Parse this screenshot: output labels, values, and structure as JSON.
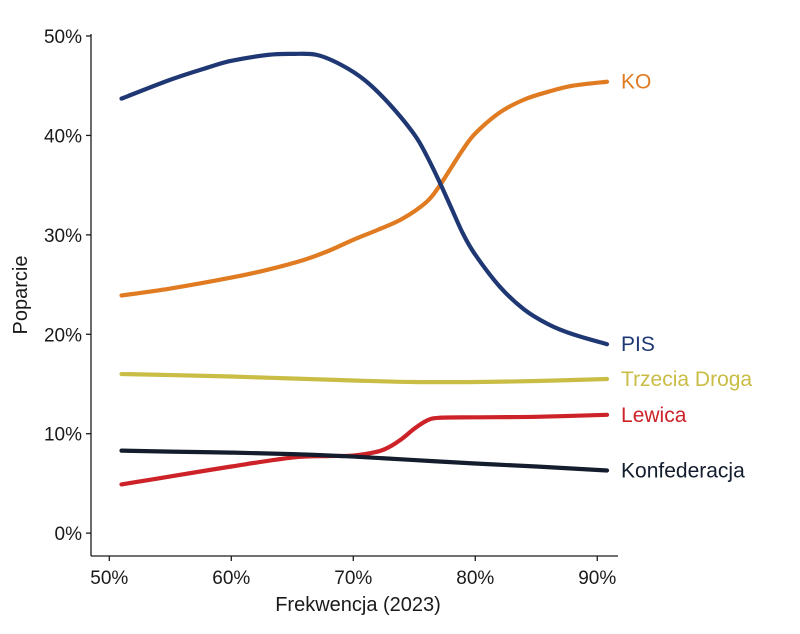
{
  "chart_data": {
    "type": "line",
    "title": "",
    "xlabel": "Frekwencja (2023)",
    "ylabel": "Poparcie",
    "xlim": [
      48.5,
      91.7
    ],
    "ylim": [
      -2.3,
      50.2
    ],
    "x_ticks": [
      50,
      60,
      70,
      80,
      90
    ],
    "x_tick_labels": [
      "50%",
      "60%",
      "70%",
      "80%",
      "90%"
    ],
    "y_ticks": [
      0,
      10,
      20,
      30,
      40,
      50
    ],
    "y_tick_labels": [
      "0%",
      "10%",
      "20%",
      "30%",
      "40%",
      "50%"
    ],
    "grid": false,
    "legend": "none (direct labels at line ends)",
    "series": [
      {
        "name": "KO",
        "color": "#e07b22",
        "points": [
          [
            51,
            23.9
          ],
          [
            55,
            24.6
          ],
          [
            60,
            25.7
          ],
          [
            63,
            26.5
          ],
          [
            66,
            27.5
          ],
          [
            68,
            28.4
          ],
          [
            70,
            29.5
          ],
          [
            72,
            30.5
          ],
          [
            74,
            31.6
          ],
          [
            76,
            33.3
          ],
          [
            77,
            34.8
          ],
          [
            78,
            36.7
          ],
          [
            79,
            38.6
          ],
          [
            80,
            40.2
          ],
          [
            82,
            42.3
          ],
          [
            84,
            43.6
          ],
          [
            86,
            44.4
          ],
          [
            88,
            45.0
          ],
          [
            90.8,
            45.4
          ]
        ]
      },
      {
        "name": "PIS",
        "color": "#1f3874",
        "points": [
          [
            51,
            43.7
          ],
          [
            55,
            45.6
          ],
          [
            58,
            46.8
          ],
          [
            60,
            47.5
          ],
          [
            63,
            48.1
          ],
          [
            65,
            48.2
          ],
          [
            67,
            48.1
          ],
          [
            69,
            47.1
          ],
          [
            71,
            45.5
          ],
          [
            73,
            43.1
          ],
          [
            75,
            40.1
          ],
          [
            76,
            38.0
          ],
          [
            77,
            35.5
          ],
          [
            78,
            32.8
          ],
          [
            79,
            30.1
          ],
          [
            80,
            28.0
          ],
          [
            82,
            24.8
          ],
          [
            84,
            22.5
          ],
          [
            86,
            21.0
          ],
          [
            88,
            20.0
          ],
          [
            90.8,
            19.0
          ]
        ]
      },
      {
        "name": "Trzecia Droga",
        "color": "#c9bd45",
        "points": [
          [
            51,
            16.0
          ],
          [
            55,
            15.9
          ],
          [
            60,
            15.75
          ],
          [
            65,
            15.55
          ],
          [
            70,
            15.35
          ],
          [
            75,
            15.2
          ],
          [
            80,
            15.2
          ],
          [
            85,
            15.3
          ],
          [
            90.8,
            15.5
          ]
        ]
      },
      {
        "name": "Lewica",
        "color": "#cc2228",
        "points": [
          [
            51,
            4.9
          ],
          [
            55,
            5.7
          ],
          [
            60,
            6.7
          ],
          [
            65,
            7.6
          ],
          [
            68,
            7.75
          ],
          [
            70,
            7.8
          ],
          [
            72,
            8.2
          ],
          [
            73,
            8.7
          ],
          [
            74,
            9.5
          ],
          [
            75,
            10.5
          ],
          [
            76,
            11.3
          ],
          [
            77,
            11.6
          ],
          [
            80,
            11.65
          ],
          [
            85,
            11.7
          ],
          [
            90.8,
            11.9
          ]
        ]
      },
      {
        "name": "Konfederacja",
        "color": "#131d2d",
        "points": [
          [
            51,
            8.3
          ],
          [
            55,
            8.2
          ],
          [
            60,
            8.1
          ],
          [
            65,
            7.95
          ],
          [
            70,
            7.7
          ],
          [
            75,
            7.35
          ],
          [
            80,
            7.0
          ],
          [
            85,
            6.7
          ],
          [
            90.8,
            6.3
          ]
        ]
      }
    ]
  }
}
